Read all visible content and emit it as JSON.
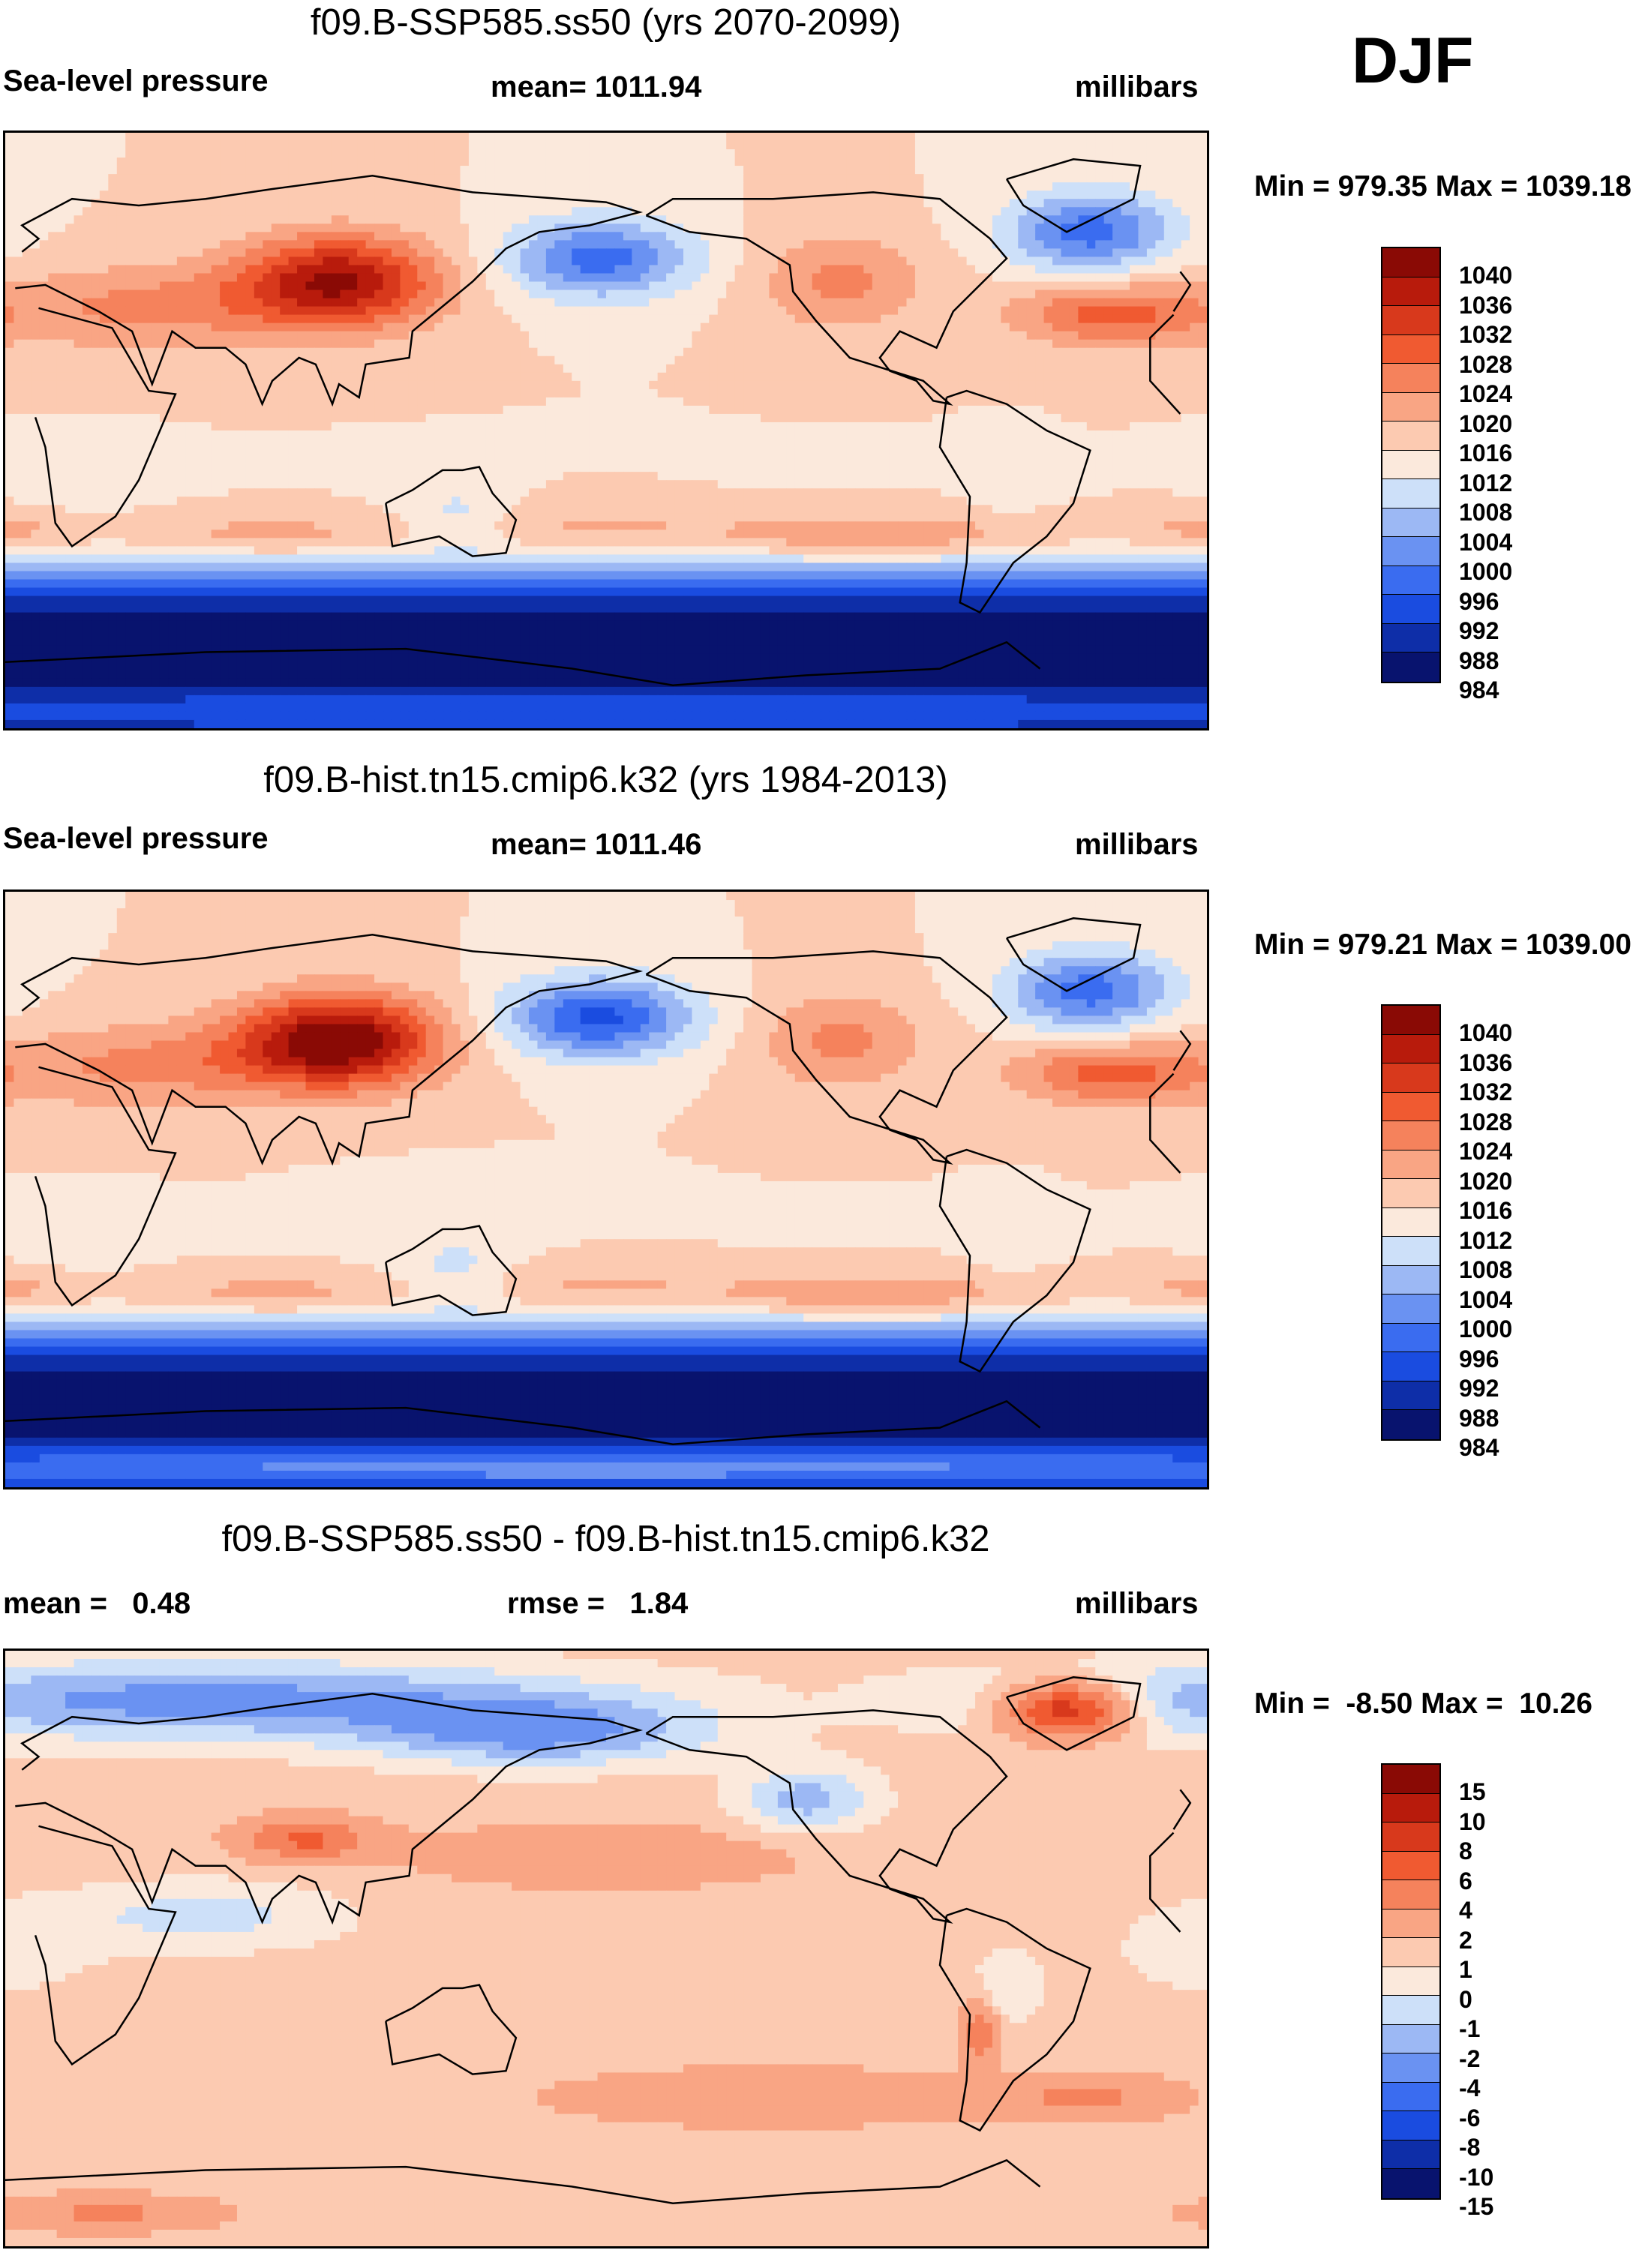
{
  "season": "DJF",
  "colors": {
    "scale": [
      "#08136e",
      "#0e2ea8",
      "#1a4ce0",
      "#3a6cf0",
      "#6a92f2",
      "#9cb8f4",
      "#cde0f9",
      "#fbe9dc",
      "#fccab1",
      "#f9a584",
      "#f5825c",
      "#f05a31",
      "#d8391c",
      "#b81b0c",
      "#8a0a05"
    ],
    "coast": "#000000"
  },
  "panels": [
    {
      "title": "f09.B-SSP585.ss50 (yrs 2070-2099)",
      "left_label": "Sea-level pressure",
      "mid_label": "mean= 1011.94",
      "units": "millibars",
      "minmax": "Min = 979.35 Max = 1039.18",
      "levels": [
        "1040",
        "1036",
        "1032",
        "1028",
        "1024",
        "1020",
        "1016",
        "1012",
        "1008",
        "1004",
        "1000",
        "996",
        "992",
        "988",
        "984"
      ],
      "field": "future"
    },
    {
      "title": "f09.B-hist.tn15.cmip6.k32 (yrs 1984-2013)",
      "left_label": "Sea-level pressure",
      "mid_label": "mean= 1011.46",
      "units": "millibars",
      "minmax": "Min = 979.21 Max = 1039.00",
      "levels": [
        "1040",
        "1036",
        "1032",
        "1028",
        "1024",
        "1020",
        "1016",
        "1012",
        "1008",
        "1004",
        "1000",
        "996",
        "992",
        "988",
        "984"
      ],
      "field": "hist"
    },
    {
      "title": "f09.B-SSP585.ss50 - f09.B-hist.tn15.cmip6.k32",
      "left_label": "mean =   0.48",
      "mid_label": "rmse =   1.84",
      "units": "millibars",
      "minmax": "Min =  -8.50 Max =  10.26",
      "levels": [
        "15",
        "10",
        "8",
        "6",
        "4",
        "2",
        "1",
        "0",
        "-1",
        "-2",
        "-4",
        "-6",
        "-8",
        "-10",
        "-15"
      ],
      "field": "diff"
    }
  ]
}
